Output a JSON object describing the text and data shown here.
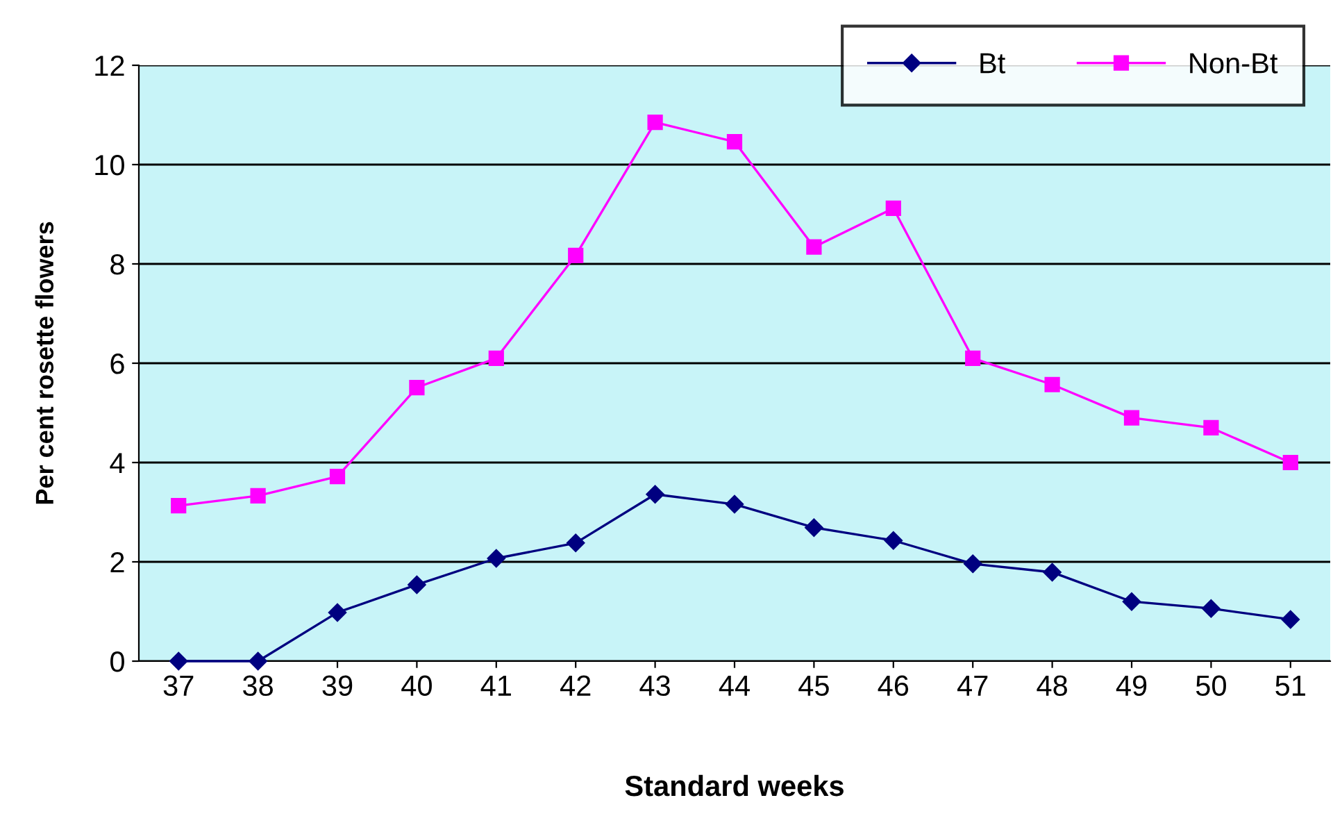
{
  "chart_data": {
    "type": "line",
    "xlabel": "Standard weeks",
    "ylabel": "Per cent rosette flowers",
    "categories": [
      "37",
      "38",
      "39",
      "40",
      "41",
      "42",
      "43",
      "44",
      "45",
      "46",
      "47",
      "48",
      "49",
      "50",
      "51"
    ],
    "series": [
      {
        "name": "Bt",
        "color": "#000080",
        "marker": "diamond",
        "values": [
          0,
          0,
          0.98,
          1.54,
          2.07,
          2.38,
          3.36,
          3.16,
          2.69,
          2.43,
          1.96,
          1.79,
          1.2,
          1.06,
          0.84
        ]
      },
      {
        "name": "Non-Bt",
        "color": "#ff00ff",
        "marker": "square",
        "values": [
          3.13,
          3.33,
          3.72,
          5.51,
          6.1,
          8.17,
          10.85,
          10.46,
          8.34,
          9.12,
          6.1,
          5.57,
          4.9,
          4.7,
          4.0
        ]
      }
    ],
    "ylim": [
      0,
      12
    ],
    "yticks": [
      0,
      2,
      4,
      6,
      8,
      10,
      12
    ],
    "grid": "y",
    "legend": "top right",
    "line_style": "solid"
  }
}
